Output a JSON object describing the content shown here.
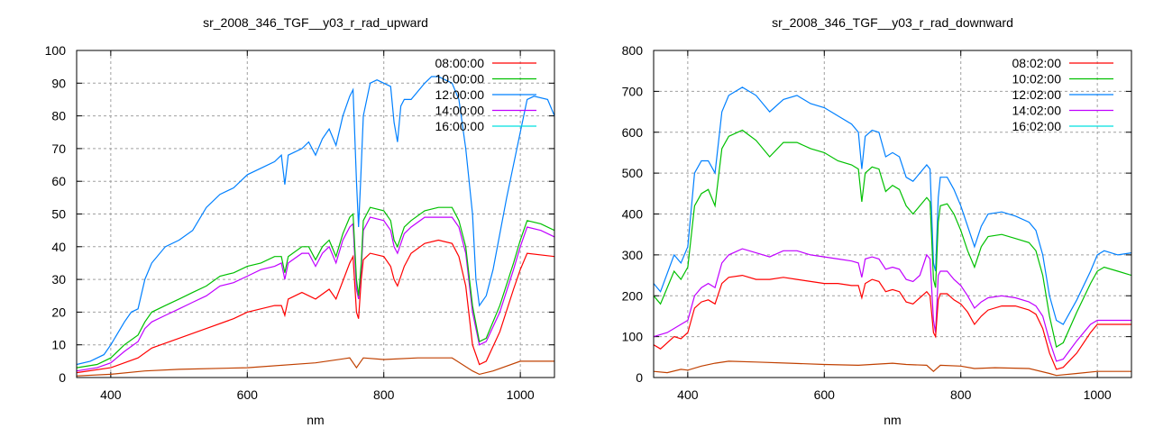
{
  "chart_data": [
    {
      "type": "line",
      "title": "sr_2008_346_TGF__y03_r_rad_upward",
      "xlabel": "nm",
      "ylabel": "",
      "xlim": [
        350,
        1050
      ],
      "ylim": [
        0,
        100
      ],
      "xticks": [
        400,
        600,
        800,
        1000
      ],
      "yticks": [
        0,
        10,
        20,
        30,
        40,
        50,
        60,
        70,
        80,
        90,
        100
      ],
      "grid": true,
      "legend_position": "top-right",
      "series": [
        {
          "name": "08:00:00",
          "color": "#ff0000",
          "key_color": "#ff0000",
          "x": [
            350,
            400,
            440,
            460,
            500,
            540,
            580,
            600,
            640,
            650,
            655,
            660,
            680,
            700,
            720,
            730,
            750,
            755,
            760,
            763,
            767,
            770,
            780,
            800,
            810,
            815,
            820,
            830,
            840,
            860,
            880,
            900,
            910,
            920,
            930,
            940,
            950,
            970,
            990,
            1000,
            1010,
            1050
          ],
          "y": [
            1.5,
            3,
            6,
            9,
            12,
            15,
            18,
            20,
            22,
            22,
            19,
            24,
            26,
            24,
            27,
            24,
            35,
            37,
            20,
            18,
            30,
            36,
            38,
            37,
            34,
            30,
            28,
            34,
            38,
            41,
            42,
            41,
            37,
            28,
            10,
            4,
            5,
            14,
            27,
            33,
            38,
            37
          ]
        },
        {
          "name": "10:00:00",
          "color": "#00c000",
          "key_color": "#00c000",
          "x": [
            350,
            380,
            400,
            420,
            440,
            450,
            460,
            480,
            500,
            520,
            540,
            560,
            580,
            600,
            620,
            640,
            650,
            655,
            660,
            680,
            690,
            700,
            710,
            720,
            730,
            740,
            750,
            755,
            760,
            763,
            767,
            770,
            780,
            800,
            810,
            815,
            820,
            830,
            840,
            860,
            880,
            900,
            910,
            920,
            930,
            940,
            950,
            970,
            990,
            1000,
            1010,
            1030,
            1050
          ],
          "y": [
            3,
            4,
            6,
            10,
            13,
            17,
            20,
            22,
            24,
            26,
            28,
            31,
            32,
            34,
            35,
            37,
            37,
            32,
            37,
            40,
            40,
            36,
            40,
            42,
            37,
            44,
            49,
            50,
            30,
            25,
            35,
            48,
            52,
            51,
            48,
            42,
            40,
            46,
            48,
            51,
            52,
            52,
            48,
            40,
            22,
            11,
            12,
            22,
            35,
            42,
            48,
            47,
            45
          ]
        },
        {
          "name": "12:00:00",
          "color": "#0080ff",
          "key_color": "#0080ff",
          "x": [
            350,
            370,
            390,
            400,
            420,
            430,
            440,
            450,
            460,
            480,
            500,
            520,
            540,
            560,
            580,
            600,
            620,
            640,
            650,
            655,
            660,
            680,
            690,
            700,
            710,
            720,
            730,
            740,
            750,
            755,
            760,
            763,
            766,
            770,
            780,
            790,
            800,
            810,
            815,
            820,
            825,
            830,
            840,
            860,
            870,
            880,
            890,
            900,
            910,
            920,
            930,
            935,
            940,
            950,
            960,
            980,
            1000,
            1010,
            1020,
            1040,
            1050
          ],
          "y": [
            4,
            5,
            7,
            10,
            17,
            20,
            21,
            30,
            35,
            40,
            42,
            45,
            52,
            56,
            58,
            62,
            64,
            66,
            68,
            59,
            68,
            70,
            72,
            68,
            73,
            76,
            71,
            80,
            86,
            88,
            60,
            46,
            60,
            80,
            90,
            91,
            90,
            89,
            78,
            72,
            83,
            85,
            85,
            90,
            92,
            92,
            91,
            90,
            85,
            70,
            50,
            30,
            22,
            25,
            33,
            55,
            75,
            85,
            86,
            85,
            80
          ]
        },
        {
          "name": "14:00:00",
          "color": "#c000ff",
          "key_color": "#c000ff",
          "x": [
            350,
            380,
            400,
            420,
            440,
            450,
            460,
            480,
            500,
            520,
            540,
            560,
            580,
            600,
            620,
            640,
            650,
            655,
            660,
            680,
            690,
            700,
            710,
            720,
            730,
            740,
            750,
            755,
            760,
            763,
            767,
            770,
            780,
            800,
            810,
            815,
            820,
            830,
            840,
            860,
            880,
            900,
            910,
            920,
            930,
            940,
            950,
            970,
            990,
            1000,
            1010,
            1030,
            1050
          ],
          "y": [
            2,
            3,
            4.5,
            8,
            11,
            15,
            17,
            19,
            21,
            23,
            25,
            28,
            29,
            31,
            33,
            34,
            35,
            30,
            35,
            38,
            38,
            34,
            38,
            40,
            35,
            42,
            46,
            47,
            27,
            24,
            33,
            45,
            49,
            48,
            45,
            40,
            38,
            44,
            46,
            49,
            49,
            49,
            46,
            38,
            20,
            10,
            11,
            20,
            33,
            40,
            46,
            45,
            43
          ]
        },
        {
          "name": "16:00:00",
          "color": "#c04000",
          "key_color": "#00e0e0",
          "x": [
            350,
            400,
            450,
            500,
            600,
            700,
            750,
            760,
            770,
            800,
            850,
            900,
            930,
            940,
            960,
            1000,
            1050
          ],
          "y": [
            0.5,
            1,
            2,
            2.5,
            3,
            4.5,
            6,
            3,
            6,
            5.5,
            6,
            6,
            2,
            1,
            2,
            5,
            5
          ]
        }
      ]
    },
    {
      "type": "line",
      "title": "sr_2008_346_TGF__y03_r_rad_downward",
      "xlabel": "nm",
      "ylabel": "",
      "xlim": [
        350,
        1050
      ],
      "ylim": [
        0,
        800
      ],
      "xticks": [
        400,
        600,
        800,
        1000
      ],
      "yticks": [
        0,
        100,
        200,
        300,
        400,
        500,
        600,
        700,
        800
      ],
      "grid": true,
      "legend_position": "top-right",
      "series": [
        {
          "name": "08:02:00",
          "color": "#ff0000",
          "key_color": "#ff0000",
          "x": [
            350,
            360,
            380,
            390,
            400,
            410,
            420,
            430,
            440,
            450,
            460,
            480,
            500,
            520,
            540,
            560,
            580,
            600,
            620,
            640,
            650,
            655,
            660,
            670,
            680,
            690,
            700,
            710,
            720,
            730,
            740,
            750,
            755,
            760,
            763,
            767,
            770,
            780,
            790,
            800,
            810,
            820,
            830,
            840,
            860,
            880,
            900,
            910,
            920,
            930,
            940,
            950,
            970,
            990,
            1000,
            1050
          ],
          "y": [
            80,
            70,
            100,
            95,
            110,
            170,
            185,
            190,
            180,
            230,
            245,
            250,
            240,
            240,
            245,
            240,
            235,
            230,
            230,
            225,
            225,
            195,
            230,
            240,
            235,
            210,
            215,
            210,
            185,
            180,
            195,
            210,
            200,
            110,
            100,
            190,
            205,
            205,
            190,
            180,
            160,
            130,
            150,
            165,
            175,
            175,
            165,
            155,
            120,
            60,
            20,
            25,
            60,
            110,
            130,
            130
          ]
        },
        {
          "name": "10:02:00",
          "color": "#00c000",
          "key_color": "#00c000",
          "x": [
            350,
            360,
            380,
            390,
            400,
            410,
            420,
            430,
            440,
            450,
            460,
            480,
            500,
            520,
            540,
            560,
            580,
            600,
            620,
            640,
            650,
            655,
            660,
            670,
            680,
            690,
            700,
            710,
            720,
            730,
            740,
            750,
            755,
            760,
            763,
            767,
            770,
            780,
            790,
            800,
            810,
            820,
            830,
            840,
            860,
            880,
            900,
            910,
            920,
            930,
            940,
            950,
            970,
            990,
            1000,
            1010,
            1030,
            1050
          ],
          "y": [
            200,
            180,
            260,
            240,
            270,
            420,
            450,
            460,
            420,
            560,
            590,
            605,
            580,
            540,
            575,
            575,
            560,
            550,
            530,
            520,
            510,
            430,
            500,
            515,
            510,
            455,
            470,
            460,
            420,
            400,
            420,
            440,
            430,
            240,
            220,
            380,
            420,
            425,
            400,
            360,
            310,
            270,
            320,
            345,
            350,
            340,
            330,
            310,
            250,
            150,
            75,
            85,
            160,
            230,
            260,
            270,
            260,
            250
          ]
        },
        {
          "name": "12:02:00",
          "color": "#0080ff",
          "key_color": "#0080ff",
          "x": [
            350,
            360,
            380,
            390,
            400,
            410,
            420,
            430,
            440,
            450,
            460,
            480,
            500,
            520,
            540,
            560,
            580,
            600,
            620,
            640,
            650,
            655,
            660,
            670,
            680,
            690,
            700,
            710,
            720,
            730,
            740,
            750,
            755,
            760,
            763,
            767,
            770,
            780,
            790,
            800,
            810,
            820,
            830,
            840,
            860,
            880,
            900,
            910,
            920,
            930,
            940,
            950,
            970,
            990,
            1000,
            1010,
            1030,
            1050
          ],
          "y": [
            230,
            210,
            300,
            280,
            320,
            500,
            530,
            530,
            500,
            650,
            690,
            710,
            690,
            650,
            680,
            690,
            670,
            660,
            640,
            620,
            600,
            510,
            590,
            605,
            600,
            540,
            550,
            540,
            490,
            480,
            500,
            520,
            510,
            280,
            260,
            440,
            490,
            490,
            460,
            420,
            370,
            320,
            370,
            400,
            405,
            395,
            380,
            360,
            300,
            200,
            140,
            130,
            190,
            260,
            300,
            310,
            300,
            305
          ]
        },
        {
          "name": "14:02:00",
          "color": "#c000ff",
          "key_color": "#c000ff",
          "x": [
            350,
            370,
            390,
            400,
            410,
            420,
            430,
            440,
            450,
            460,
            480,
            500,
            520,
            540,
            560,
            580,
            600,
            620,
            640,
            650,
            655,
            660,
            670,
            680,
            690,
            700,
            710,
            720,
            730,
            740,
            750,
            755,
            760,
            763,
            767,
            770,
            780,
            790,
            800,
            810,
            820,
            830,
            840,
            860,
            880,
            900,
            910,
            920,
            930,
            940,
            950,
            970,
            990,
            1000,
            1050
          ],
          "y": [
            100,
            110,
            130,
            140,
            200,
            220,
            230,
            220,
            280,
            300,
            315,
            305,
            295,
            310,
            310,
            300,
            295,
            290,
            285,
            280,
            245,
            290,
            295,
            290,
            265,
            270,
            265,
            240,
            235,
            250,
            300,
            290,
            140,
            110,
            250,
            260,
            260,
            240,
            225,
            200,
            170,
            185,
            195,
            200,
            195,
            185,
            175,
            150,
            90,
            40,
            45,
            90,
            130,
            140,
            140
          ]
        },
        {
          "name": "16:02:00",
          "color": "#c04000",
          "key_color": "#00e0e0",
          "x": [
            350,
            370,
            390,
            400,
            420,
            440,
            460,
            500,
            550,
            600,
            650,
            700,
            720,
            750,
            760,
            770,
            800,
            820,
            850,
            900,
            930,
            940,
            970,
            1000,
            1050
          ],
          "y": [
            15,
            12,
            20,
            18,
            28,
            35,
            40,
            38,
            35,
            32,
            30,
            35,
            32,
            30,
            15,
            30,
            28,
            22,
            24,
            22,
            10,
            5,
            10,
            15,
            15
          ]
        }
      ]
    }
  ]
}
